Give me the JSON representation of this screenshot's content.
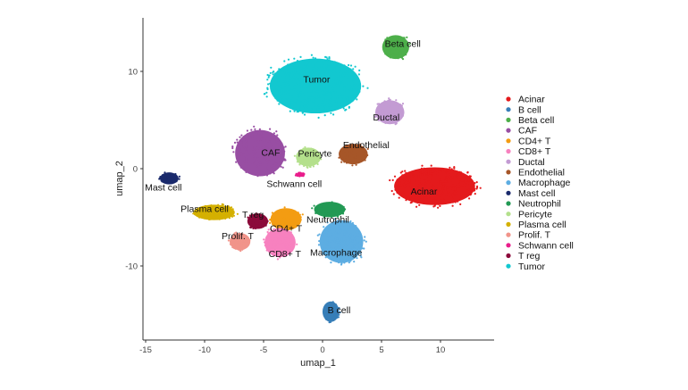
{
  "chart_data": {
    "type": "scatter",
    "title": "",
    "xlabel": "umap_1",
    "ylabel": "umap_2",
    "xlim": [
      -15.2,
      14.5
    ],
    "ylim": [
      -17.5,
      15.5
    ],
    "xticks": [
      -15,
      -10,
      -5,
      0,
      5,
      10
    ],
    "yticks": [
      -10,
      0,
      10
    ],
    "grid": false,
    "legend_placement": "right",
    "clusters": [
      {
        "name": "Acinar",
        "color": "#E41A1C",
        "center": [
          9.5,
          -1.8
        ],
        "extent": [
          3.9,
          2.2
        ],
        "label_at": [
          8.6,
          -2.3
        ]
      },
      {
        "name": "B cell",
        "color": "#377EB8",
        "center": [
          0.7,
          -14.7
        ],
        "extent": [
          0.8,
          1.2
        ],
        "label_at": [
          1.4,
          -14.5
        ]
      },
      {
        "name": "Beta cell",
        "color": "#4DAF4A",
        "center": [
          6.2,
          12.5
        ],
        "extent": [
          1.3,
          1.4
        ],
        "label_at": [
          6.8,
          12.9
        ]
      },
      {
        "name": "CAF",
        "color": "#984EA3",
        "center": [
          -5.3,
          1.6
        ],
        "extent": [
          2.4,
          2.7
        ],
        "label_at": [
          -4.4,
          1.7
        ]
      },
      {
        "name": "CD4+ T",
        "color": "#F39C12",
        "center": [
          -3.1,
          -5.2
        ],
        "extent": [
          1.5,
          1.3
        ],
        "label_at": [
          -3.1,
          -6.1
        ]
      },
      {
        "name": "CD8+ T",
        "color": "#F781BF",
        "center": [
          -3.6,
          -7.6
        ],
        "extent": [
          1.5,
          1.7
        ],
        "label_at": [
          -3.2,
          -8.7
        ]
      },
      {
        "name": "Ductal",
        "color": "#C39BD3",
        "center": [
          5.7,
          5.8
        ],
        "extent": [
          1.4,
          1.4
        ],
        "label_at": [
          5.4,
          5.3
        ]
      },
      {
        "name": "Endothelial",
        "color": "#A65628",
        "center": [
          2.6,
          1.5
        ],
        "extent": [
          1.4,
          1.2
        ],
        "label_at": [
          3.7,
          2.5
        ]
      },
      {
        "name": "Macrophage",
        "color": "#5DADE2",
        "center": [
          1.6,
          -7.5
        ],
        "extent": [
          2.1,
          2.5
        ],
        "label_at": [
          1.15,
          -8.6
        ]
      },
      {
        "name": "Mast cell",
        "color": "#1A2A6C",
        "center": [
          -13.0,
          -1.0
        ],
        "extent": [
          0.9,
          0.7
        ],
        "label_at": [
          -13.5,
          -1.9
        ]
      },
      {
        "name": "Neutrophil",
        "color": "#229954",
        "center": [
          0.6,
          -4.2
        ],
        "extent": [
          1.5,
          0.9
        ],
        "label_at": [
          0.45,
          -5.2
        ]
      },
      {
        "name": "Pericyte",
        "color": "#B4E08C",
        "center": [
          -1.2,
          1.2
        ],
        "extent": [
          1.2,
          1.1
        ],
        "label_at": [
          -0.65,
          1.6
        ]
      },
      {
        "name": "Plasma cell",
        "color": "#D4B000",
        "center": [
          -9.2,
          -4.5
        ],
        "extent": [
          2.0,
          0.9
        ],
        "label_at": [
          -10.0,
          -4.1
        ]
      },
      {
        "name": "Prolif. T",
        "color": "#F1948A",
        "center": [
          -7.0,
          -7.5
        ],
        "extent": [
          1.0,
          1.0
        ],
        "label_at": [
          -7.2,
          -6.9
        ]
      },
      {
        "name": "Schwann cell",
        "color": "#E91E8C",
        "center": [
          -1.9,
          -0.6
        ],
        "extent": [
          0.45,
          0.2
        ],
        "label_at": [
          -2.4,
          -1.5
        ]
      },
      {
        "name": "T reg",
        "color": "#8B0A3A",
        "center": [
          -5.5,
          -5.4
        ],
        "extent": [
          1.0,
          0.9
        ],
        "label_at": [
          -5.9,
          -4.7
        ]
      },
      {
        "name": "Tumor",
        "color": "#12C8D0",
        "center": [
          -0.6,
          8.5
        ],
        "extent": [
          4.4,
          3.2
        ],
        "label_at": [
          -0.5,
          9.2
        ]
      }
    ]
  }
}
